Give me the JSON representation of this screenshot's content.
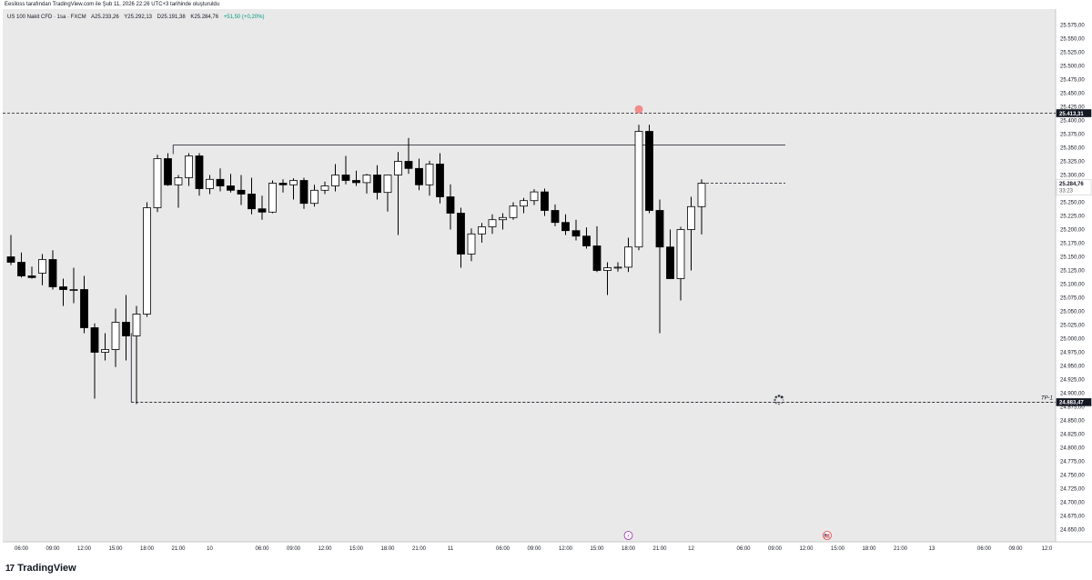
{
  "header": {
    "creator_text": "Eesiloss tarafından TradingView.com ile Şub 11, 2026 22:26 UTC+3 tarihinde oluşturuldu"
  },
  "legend": {
    "symbol": "US 100 Nakit CFD · 1sa · FXCM",
    "open": "A25.233,26",
    "high": "Y25.292,13",
    "low": "D25.191,38",
    "close": "K25.284,76",
    "change": "+51,50 (+0,20%)"
  },
  "colors": {
    "bull_body": "#ffffff",
    "bear_body": "#000000",
    "wick": "#000000",
    "background": "#e9e9e9",
    "marker_red": "#f28b8b"
  },
  "chart_data": {
    "type": "candlestick",
    "y_axis": {
      "min": 24650,
      "max": 25600,
      "tick_labels": [
        "25.575,00",
        "25.550,00",
        "25.525,00",
        "25.500,00",
        "25.475,00",
        "25.450,00",
        "25.425,00",
        "25.400,00",
        "25.375,00",
        "25.350,00",
        "25.325,00",
        "25.300,00",
        "25.275,00",
        "25.250,00",
        "25.225,00",
        "25.200,00",
        "25.175,00",
        "25.150,00",
        "25.125,00",
        "25.100,00",
        "25.075,00",
        "25.050,00",
        "25.025,00",
        "25.000,00",
        "24.975,00",
        "24.950,00",
        "24.925,00",
        "24.900,00",
        "24.875,00",
        "24.850,00",
        "24.825,00",
        "24.800,00",
        "24.775,00",
        "24.750,00",
        "24.725,00",
        "24.700,00",
        "24.675,00",
        "24.650,00"
      ],
      "tick_values": [
        25575,
        25550,
        25525,
        25500,
        25475,
        25450,
        25425,
        25400,
        25375,
        25350,
        25325,
        25300,
        25275,
        25250,
        25225,
        25200,
        25175,
        25150,
        25125,
        25100,
        25075,
        25050,
        25025,
        25000,
        24975,
        24950,
        24925,
        24900,
        24875,
        24850,
        24825,
        24800,
        24775,
        24750,
        24725,
        24700,
        24675,
        24650
      ]
    },
    "x_axis": {
      "tick_labels": [
        "06:00",
        "09:00",
        "12:00",
        "15:00",
        "18:00",
        "21:00",
        "10",
        "06:00",
        "09:00",
        "12:00",
        "15:00",
        "18:00",
        "21:00",
        "11",
        "06:00",
        "09:00",
        "12:00",
        "15:00",
        "18:00",
        "21:00",
        "12",
        "06:00",
        "09:00",
        "12:00",
        "15:00",
        "18:00",
        "21:00",
        "13",
        "06:00",
        "09:00",
        "12:0"
      ],
      "tick_bar_index": [
        1,
        4,
        7,
        10,
        13,
        16,
        19,
        24,
        27,
        30,
        33,
        36,
        39,
        42,
        47,
        50,
        53,
        56,
        59,
        62,
        65,
        70,
        73,
        76,
        79,
        82,
        85,
        88,
        93,
        96,
        99
      ]
    },
    "candles": [
      {
        "o": 25150,
        "h": 25190,
        "l": 25135,
        "c": 25140
      },
      {
        "o": 25140,
        "h": 25158,
        "l": 25112,
        "c": 25115
      },
      {
        "o": 25115,
        "h": 25132,
        "l": 25110,
        "c": 25112
      },
      {
        "o": 25120,
        "h": 25155,
        "l": 25098,
        "c": 25145
      },
      {
        "o": 25145,
        "h": 25162,
        "l": 25090,
        "c": 25095
      },
      {
        "o": 25095,
        "h": 25110,
        "l": 25060,
        "c": 25090
      },
      {
        "o": 25090,
        "h": 25130,
        "l": 25065,
        "c": 25090
      },
      {
        "o": 25090,
        "h": 25115,
        "l": 25010,
        "c": 25020
      },
      {
        "o": 25020,
        "h": 25028,
        "l": 24890,
        "c": 24975
      },
      {
        "o": 24975,
        "h": 25010,
        "l": 24960,
        "c": 24980
      },
      {
        "o": 24980,
        "h": 25055,
        "l": 24948,
        "c": 25030
      },
      {
        "o": 25030,
        "h": 25080,
        "l": 24960,
        "c": 25005
      },
      {
        "o": 25005,
        "h": 25060,
        "l": 24880,
        "c": 25045
      },
      {
        "o": 25045,
        "h": 25250,
        "l": 25040,
        "c": 25240
      },
      {
        "o": 25240,
        "h": 25337,
        "l": 25232,
        "c": 25330
      },
      {
        "o": 25330,
        "h": 25340,
        "l": 25280,
        "c": 25282
      },
      {
        "o": 25282,
        "h": 25300,
        "l": 25240,
        "c": 25295
      },
      {
        "o": 25295,
        "h": 25340,
        "l": 25280,
        "c": 25335
      },
      {
        "o": 25335,
        "h": 25340,
        "l": 25262,
        "c": 25275
      },
      {
        "o": 25275,
        "h": 25300,
        "l": 25265,
        "c": 25292
      },
      {
        "o": 25292,
        "h": 25312,
        "l": 25270,
        "c": 25280
      },
      {
        "o": 25280,
        "h": 25302,
        "l": 25268,
        "c": 25272
      },
      {
        "o": 25272,
        "h": 25300,
        "l": 25245,
        "c": 25265
      },
      {
        "o": 25265,
        "h": 25295,
        "l": 25228,
        "c": 25238
      },
      {
        "o": 25238,
        "h": 25262,
        "l": 25218,
        "c": 25232
      },
      {
        "o": 25232,
        "h": 25290,
        "l": 25230,
        "c": 25285
      },
      {
        "o": 25285,
        "h": 25292,
        "l": 25268,
        "c": 25282
      },
      {
        "o": 25282,
        "h": 25294,
        "l": 25255,
        "c": 25290
      },
      {
        "o": 25290,
        "h": 25295,
        "l": 25238,
        "c": 25248
      },
      {
        "o": 25248,
        "h": 25282,
        "l": 25242,
        "c": 25272
      },
      {
        "o": 25272,
        "h": 25288,
        "l": 25265,
        "c": 25280
      },
      {
        "o": 25280,
        "h": 25320,
        "l": 25270,
        "c": 25300
      },
      {
        "o": 25300,
        "h": 25335,
        "l": 25283,
        "c": 25290
      },
      {
        "o": 25290,
        "h": 25308,
        "l": 25280,
        "c": 25286
      },
      {
        "o": 25286,
        "h": 25302,
        "l": 25266,
        "c": 25300
      },
      {
        "o": 25300,
        "h": 25318,
        "l": 25255,
        "c": 25268
      },
      {
        "o": 25268,
        "h": 25300,
        "l": 25233,
        "c": 25300
      },
      {
        "o": 25300,
        "h": 25342,
        "l": 25190,
        "c": 25325
      },
      {
        "o": 25325,
        "h": 25368,
        "l": 25302,
        "c": 25312
      },
      {
        "o": 25312,
        "h": 25330,
        "l": 25272,
        "c": 25282
      },
      {
        "o": 25282,
        "h": 25326,
        "l": 25262,
        "c": 25320
      },
      {
        "o": 25320,
        "h": 25340,
        "l": 25248,
        "c": 25260
      },
      {
        "o": 25260,
        "h": 25283,
        "l": 25200,
        "c": 25230
      },
      {
        "o": 25230,
        "h": 25240,
        "l": 25130,
        "c": 25155
      },
      {
        "o": 25155,
        "h": 25202,
        "l": 25142,
        "c": 25192
      },
      {
        "o": 25192,
        "h": 25212,
        "l": 25176,
        "c": 25205
      },
      {
        "o": 25205,
        "h": 25228,
        "l": 25192,
        "c": 25218
      },
      {
        "o": 25218,
        "h": 25230,
        "l": 25200,
        "c": 25222
      },
      {
        "o": 25222,
        "h": 25250,
        "l": 25218,
        "c": 25243
      },
      {
        "o": 25243,
        "h": 25258,
        "l": 25230,
        "c": 25253
      },
      {
        "o": 25253,
        "h": 25274,
        "l": 25245,
        "c": 25269
      },
      {
        "o": 25269,
        "h": 25275,
        "l": 25225,
        "c": 25235
      },
      {
        "o": 25235,
        "h": 25246,
        "l": 25206,
        "c": 25213
      },
      {
        "o": 25213,
        "h": 25228,
        "l": 25190,
        "c": 25198
      },
      {
        "o": 25198,
        "h": 25218,
        "l": 25180,
        "c": 25188
      },
      {
        "o": 25188,
        "h": 25204,
        "l": 25165,
        "c": 25170
      },
      {
        "o": 25170,
        "h": 25206,
        "l": 25122,
        "c": 25125
      },
      {
        "o": 25125,
        "h": 25140,
        "l": 25080,
        "c": 25130
      },
      {
        "o": 25130,
        "h": 25140,
        "l": 25123,
        "c": 25131
      },
      {
        "o": 25131,
        "h": 25185,
        "l": 25122,
        "c": 25168
      },
      {
        "o": 25168,
        "h": 25392,
        "l": 25162,
        "c": 25380
      },
      {
        "o": 25380,
        "h": 25392,
        "l": 25230,
        "c": 25235
      },
      {
        "o": 25235,
        "h": 25255,
        "l": 25010,
        "c": 25168
      },
      {
        "o": 25168,
        "h": 25200,
        "l": 25110,
        "c": 25110
      },
      {
        "o": 25110,
        "h": 25205,
        "l": 25070,
        "c": 25200
      },
      {
        "o": 25200,
        "h": 25260,
        "l": 25125,
        "c": 25242
      },
      {
        "o": 25242,
        "h": 25292,
        "l": 25191,
        "c": 25285
      }
    ],
    "lines": [
      {
        "kind": "horizontal-dashed",
        "price": 25413.31
      },
      {
        "kind": "horizontal-solid",
        "price": 25355,
        "from_bar": 15.5,
        "to_bar": 74
      },
      {
        "kind": "horizontal-dashed",
        "price": 24883.47,
        "from_bar": 11.5,
        "to_bar": 999
      },
      {
        "kind": "horizontal-dashed",
        "price": 25285,
        "from_bar": 66,
        "to_bar": 74
      }
    ],
    "price_labels": [
      {
        "text": "25.413,31",
        "price": 25413.31,
        "style": "dark"
      },
      {
        "text": "25.284,76",
        "price": 25284.76,
        "style": "light",
        "sub": "33:23"
      },
      {
        "text": "24.883,47",
        "price": 24883.47,
        "style": "dark"
      }
    ],
    "annotations": [
      {
        "text": "TP-1",
        "price": 24883.47
      }
    ],
    "event_markers": [
      {
        "label": "⚡",
        "bar": 59
      },
      {
        "label": "🇺🇸",
        "bar": 78
      }
    ]
  },
  "footer": {
    "brand_icon": "17",
    "brand": "TradingView"
  }
}
